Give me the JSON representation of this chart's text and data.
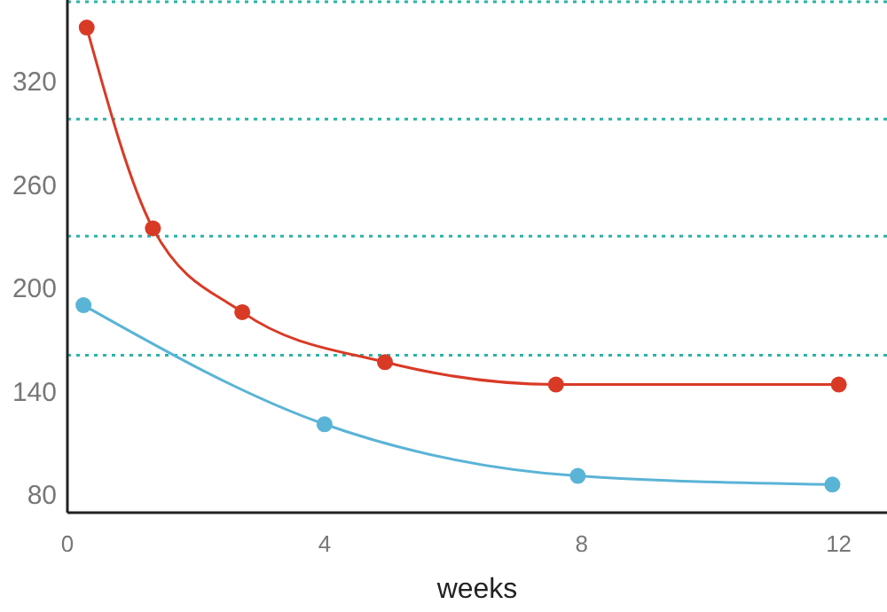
{
  "chart_data": {
    "type": "line",
    "xlabel": "weeks",
    "xlim": [
      0,
      12.75
    ],
    "xticks": [
      0,
      4,
      8,
      12
    ],
    "ylim": [
      69.7,
      367
    ],
    "yticks": [
      80,
      140,
      200,
      260,
      320
    ],
    "marker": "circle",
    "grid": false,
    "series": [
      {
        "color": "#d93a26",
        "x": [
          0.3,
          1.33,
          2.72,
          4.94,
          7.6,
          12
        ],
        "values": [
          351,
          234.6,
          186,
          157,
          144,
          144
        ]
      },
      {
        "color": "#5ab4d6",
        "x": [
          0.25,
          4,
          7.94,
          11.9
        ],
        "values": [
          190,
          121,
          91,
          86
        ]
      }
    ],
    "ref_lines": [
      {
        "axis": "y",
        "value": 366,
        "color": "#2bb3a8",
        "line_style": "dotted"
      },
      {
        "axis": "y",
        "value": 298,
        "color": "#2bb3a8",
        "line_style": "dotted"
      },
      {
        "axis": "y",
        "value": 230,
        "color": "#2bb3a8",
        "line_style": "dotted"
      },
      {
        "axis": "y",
        "value": 161,
        "color": "#2bb3a8",
        "line_style": "dotted"
      }
    ]
  }
}
